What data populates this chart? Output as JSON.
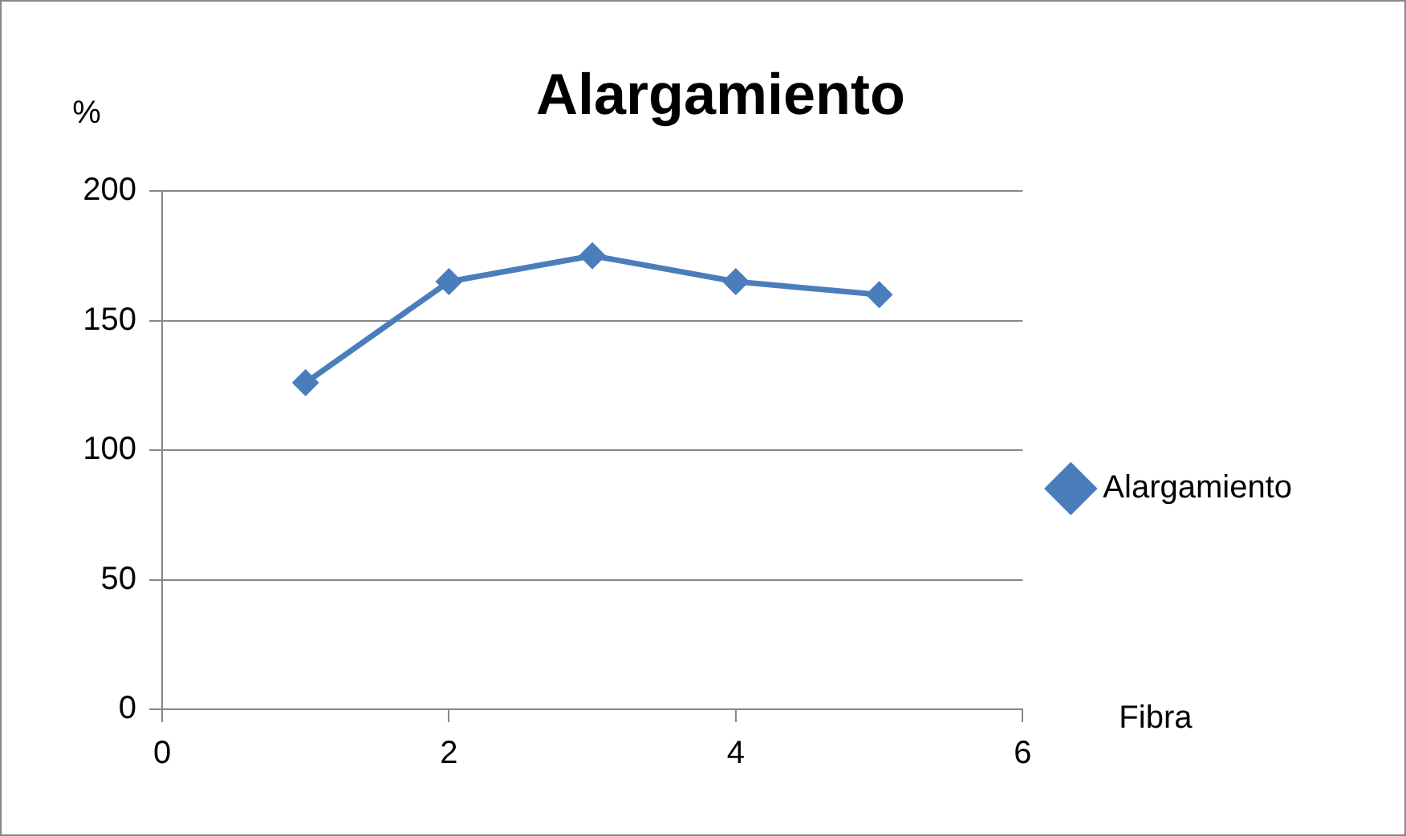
{
  "chart_data": {
    "type": "line",
    "title": "Alargamiento",
    "xlabel": "Fibra",
    "ylabel": "%",
    "x": [
      1,
      2,
      3,
      4,
      5
    ],
    "series": [
      {
        "name": "Alargamiento",
        "color": "#4a7ebb",
        "values": [
          126,
          165,
          175,
          165,
          160
        ]
      }
    ],
    "xlim": [
      0,
      6
    ],
    "xticks": [
      0,
      2,
      4,
      6
    ],
    "ylim": [
      0,
      200
    ],
    "yticks": [
      0,
      50,
      100,
      150,
      200
    ],
    "grid": "y",
    "legend": "right",
    "marker": "diamond",
    "line_style": "solid"
  }
}
